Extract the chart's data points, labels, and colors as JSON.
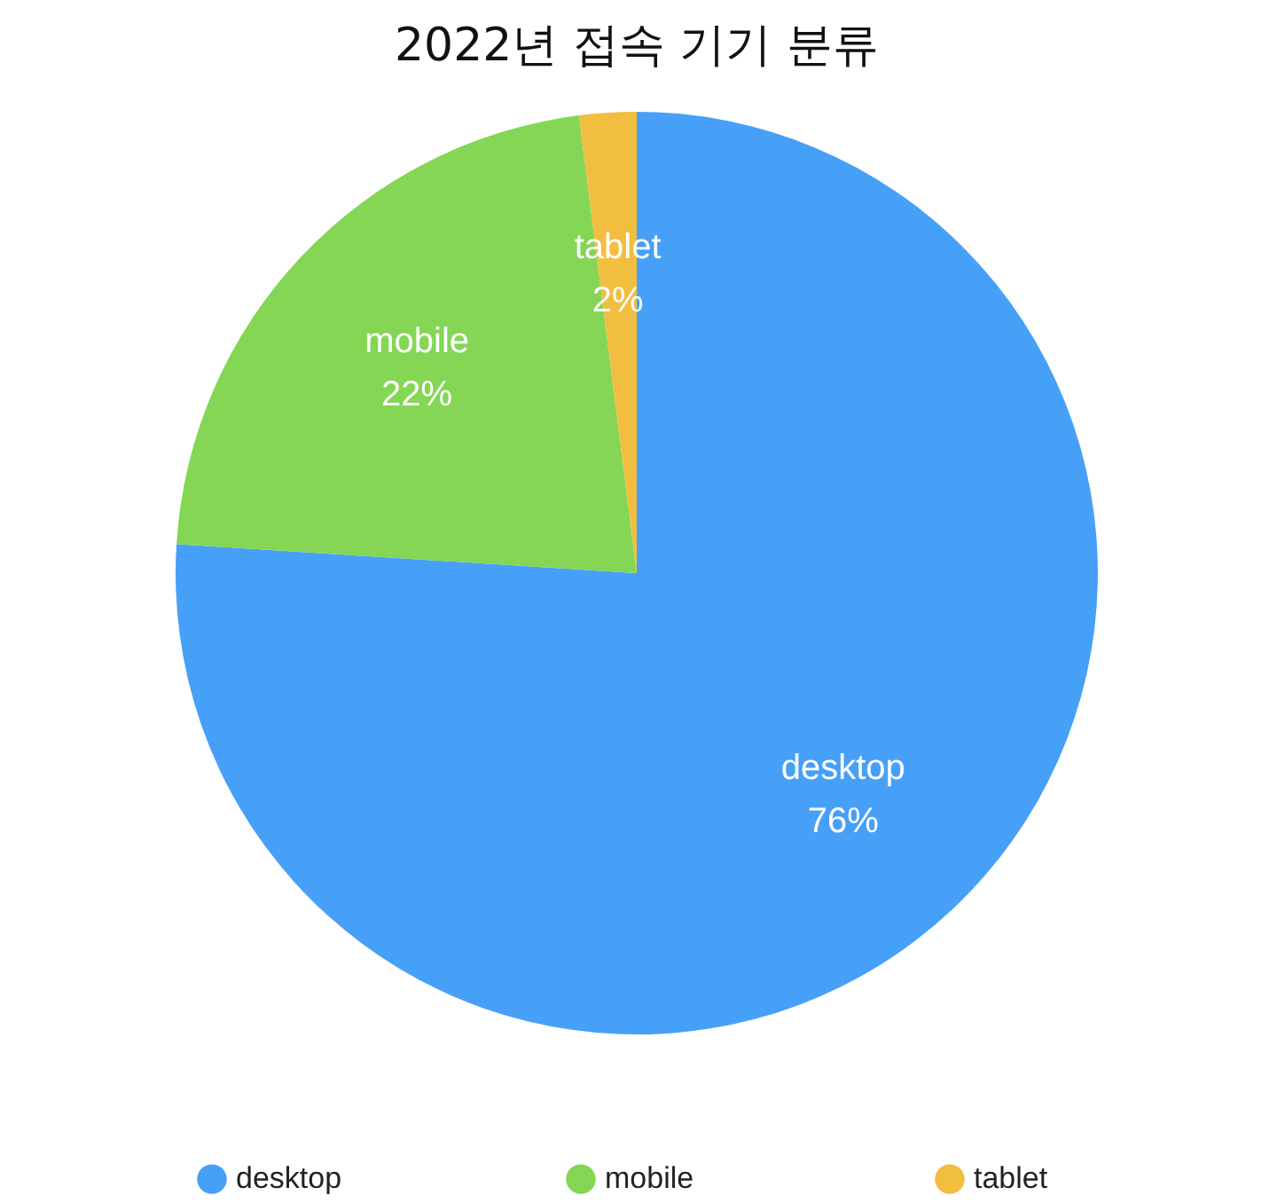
{
  "chart_data": {
    "type": "pie",
    "title": "2022년 접속 기기 분류",
    "categories": [
      "desktop",
      "mobile",
      "tablet"
    ],
    "values": [
      76,
      22,
      2
    ],
    "colors": [
      "#47a0f8",
      "#84d654",
      "#f2be40"
    ],
    "value_labels": [
      "76%",
      "22%",
      "2%"
    ],
    "legend": "bottom"
  }
}
